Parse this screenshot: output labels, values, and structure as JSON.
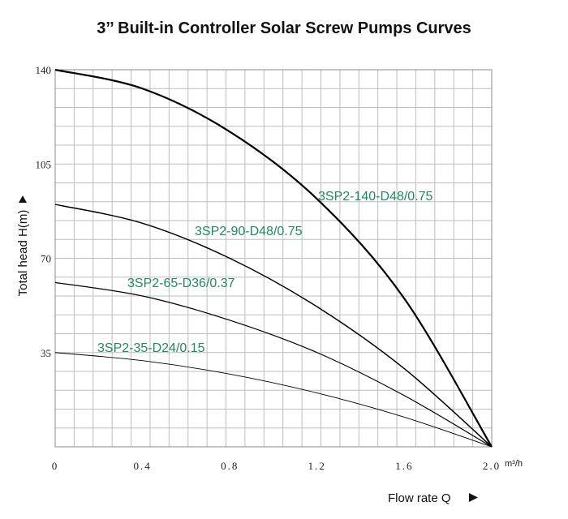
{
  "chart_data": {
    "type": "line",
    "title": "3’’ Built-in Controller Solar Screw Pumps Curves",
    "xlabel": "Flow rate Q",
    "ylabel": "Total head H(m)",
    "x_unit": "m³/h",
    "xlim": [
      0,
      2.0
    ],
    "ylim": [
      0,
      140
    ],
    "x_ticks": [
      "0",
      "0.4",
      "0.8",
      "1.2",
      "1.6",
      "2.0"
    ],
    "y_ticks": [
      "35",
      "70",
      "105",
      "140"
    ],
    "grid": true,
    "arrow_symbol": "triangle-arrow",
    "series": [
      {
        "name": "3SP2-140-D48/0.75",
        "x": [
          0,
          0.4,
          0.8,
          1.2,
          1.6,
          2.0
        ],
        "values": [
          140,
          133,
          117,
          92,
          55,
          0
        ],
        "color": "#000000"
      },
      {
        "name": "3SP2-90-D48/0.75",
        "x": [
          0,
          0.4,
          0.8,
          1.2,
          1.6,
          2.0
        ],
        "values": [
          90,
          83,
          70,
          52,
          29,
          0
        ],
        "color": "#000000"
      },
      {
        "name": "3SP2-65-D36/0.37",
        "x": [
          0,
          0.4,
          0.8,
          1.2,
          1.6,
          2.0
        ],
        "values": [
          61,
          56,
          47,
          35,
          19,
          0
        ],
        "color": "#000000"
      },
      {
        "name": "3SP2-35-D24/0.15",
        "x": [
          0,
          0.4,
          0.8,
          1.2,
          1.6,
          2.0
        ],
        "values": [
          35,
          32,
          27,
          20,
          11,
          0
        ],
        "color": "#000000"
      }
    ],
    "label_color": "#1f8a5e"
  }
}
